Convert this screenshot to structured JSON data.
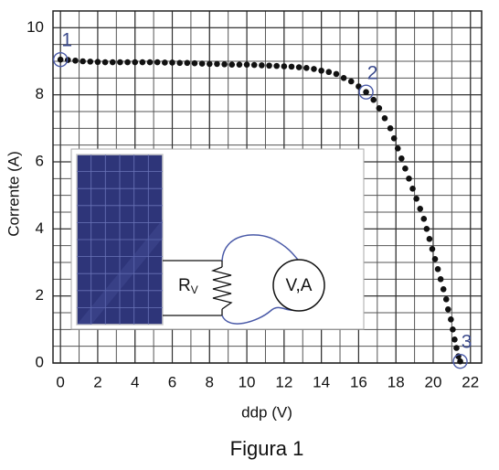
{
  "chart_data": {
    "type": "scatter",
    "caption": "Figura 1",
    "xlabel": "ddp (V)",
    "ylabel": "Corrente (A)",
    "xlim": [
      -0.4,
      22.6
    ],
    "ylim": [
      0,
      10.5
    ],
    "xticks": [
      0,
      2,
      4,
      6,
      8,
      10,
      12,
      14,
      16,
      18,
      20,
      22
    ],
    "yticks": [
      0,
      2,
      4,
      6,
      8,
      10
    ],
    "grid": true,
    "minor_grid": {
      "x": 2,
      "y": 4
    },
    "color": "#111111",
    "x": [
      0,
      0.4,
      0.8,
      1.2,
      1.6,
      2,
      2.4,
      2.8,
      3.2,
      3.6,
      4,
      4.4,
      4.8,
      5.2,
      5.6,
      6,
      6.4,
      6.8,
      7.2,
      7.6,
      8,
      8.4,
      8.8,
      9.2,
      9.6,
      10,
      10.4,
      10.8,
      11.2,
      11.6,
      12,
      12.4,
      12.8,
      13.2,
      13.6,
      14,
      14.4,
      14.8,
      15.2,
      15.6,
      16,
      16.4,
      16.8,
      17.1,
      17.4,
      17.7,
      17.9,
      18.1,
      18.3,
      18.5,
      18.7,
      18.9,
      19.1,
      19.3,
      19.5,
      19.65,
      19.8,
      19.95,
      20.1,
      20.25,
      20.4,
      20.55,
      20.7,
      20.8,
      20.95,
      21.05,
      21.15,
      21.25,
      21.35,
      21.45
    ],
    "values": [
      9.05,
      9.04,
      9.02,
      9.0,
      8.99,
      8.98,
      8.97,
      8.97,
      8.97,
      8.97,
      8.97,
      8.97,
      8.97,
      8.97,
      8.96,
      8.96,
      8.95,
      8.95,
      8.94,
      8.93,
      8.92,
      8.92,
      8.91,
      8.9,
      8.9,
      8.9,
      8.89,
      8.88,
      8.87,
      8.86,
      8.85,
      8.84,
      8.82,
      8.8,
      8.77,
      8.72,
      8.68,
      8.62,
      8.5,
      8.4,
      8.25,
      8.08,
      7.85,
      7.6,
      7.3,
      7.0,
      6.7,
      6.4,
      6.1,
      5.8,
      5.5,
      5.2,
      4.9,
      4.6,
      4.3,
      4.0,
      3.7,
      3.4,
      3.1,
      2.8,
      2.5,
      2.2,
      1.9,
      1.6,
      1.3,
      1.0,
      0.7,
      0.45,
      0.2,
      0.05
    ],
    "annotations": [
      {
        "text": "1",
        "x": 0,
        "y": 9.05
      },
      {
        "text": "2",
        "x": 16.4,
        "y": 8.08
      },
      {
        "text": "3",
        "x": 21.45,
        "y": 0.05
      }
    ],
    "inset": {
      "resistor_label": "R",
      "resistor_subscript": "V",
      "meter_label": "V,A"
    }
  }
}
